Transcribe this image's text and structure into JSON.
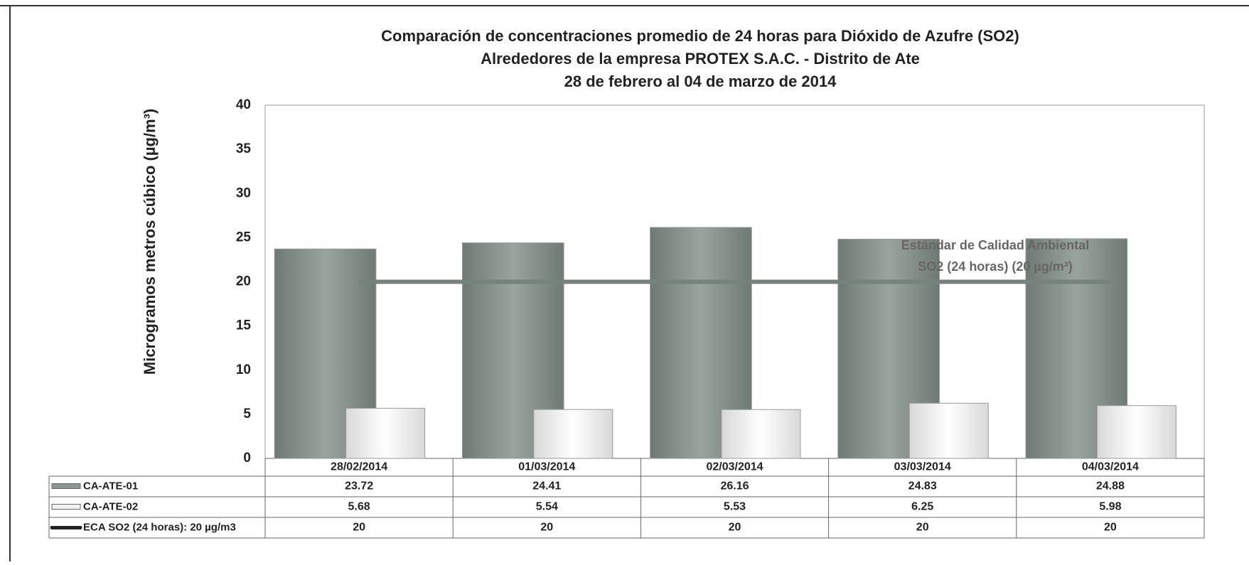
{
  "chart_data": {
    "type": "bar",
    "title": [
      "Comparación de concentraciones promedio de 24 horas para Dióxido de Azufre (SO2)",
      "Alrededores de la empresa PROTEX S.A.C. - Distrito de Ate",
      "28 de febrero  al 04 de marzo de 2014"
    ],
    "y_label": "Microgramos metros cúbico (µg/m³)",
    "annotation": [
      "Estándar de Calidad Ambiental",
      "SO2 (24 horas)  (20 µg/m³)"
    ],
    "categories": [
      "28/02/2014",
      "01/03/2014",
      "02/03/2014",
      "03/03/2014",
      "04/03/2014"
    ],
    "series": [
      {
        "name": "CA-ATE-01",
        "color": "#8c9690",
        "type": "bar",
        "values": [
          23.72,
          24.41,
          26.16,
          24.83,
          24.88
        ]
      },
      {
        "name": "CA-ATE-02",
        "color": "#f2f2f2",
        "type": "bar",
        "values": [
          5.68,
          5.54,
          5.53,
          6.25,
          5.98
        ]
      },
      {
        "name": "ECA SO2 (24 horas): 20 µg/m3",
        "color": "#76827c",
        "type": "line",
        "values": [
          20,
          20,
          20,
          20,
          20
        ]
      }
    ],
    "ylim": [
      0,
      40
    ],
    "yticks": [
      0,
      5,
      10,
      15,
      20,
      25,
      30,
      35,
      40
    ],
    "grid": false
  }
}
